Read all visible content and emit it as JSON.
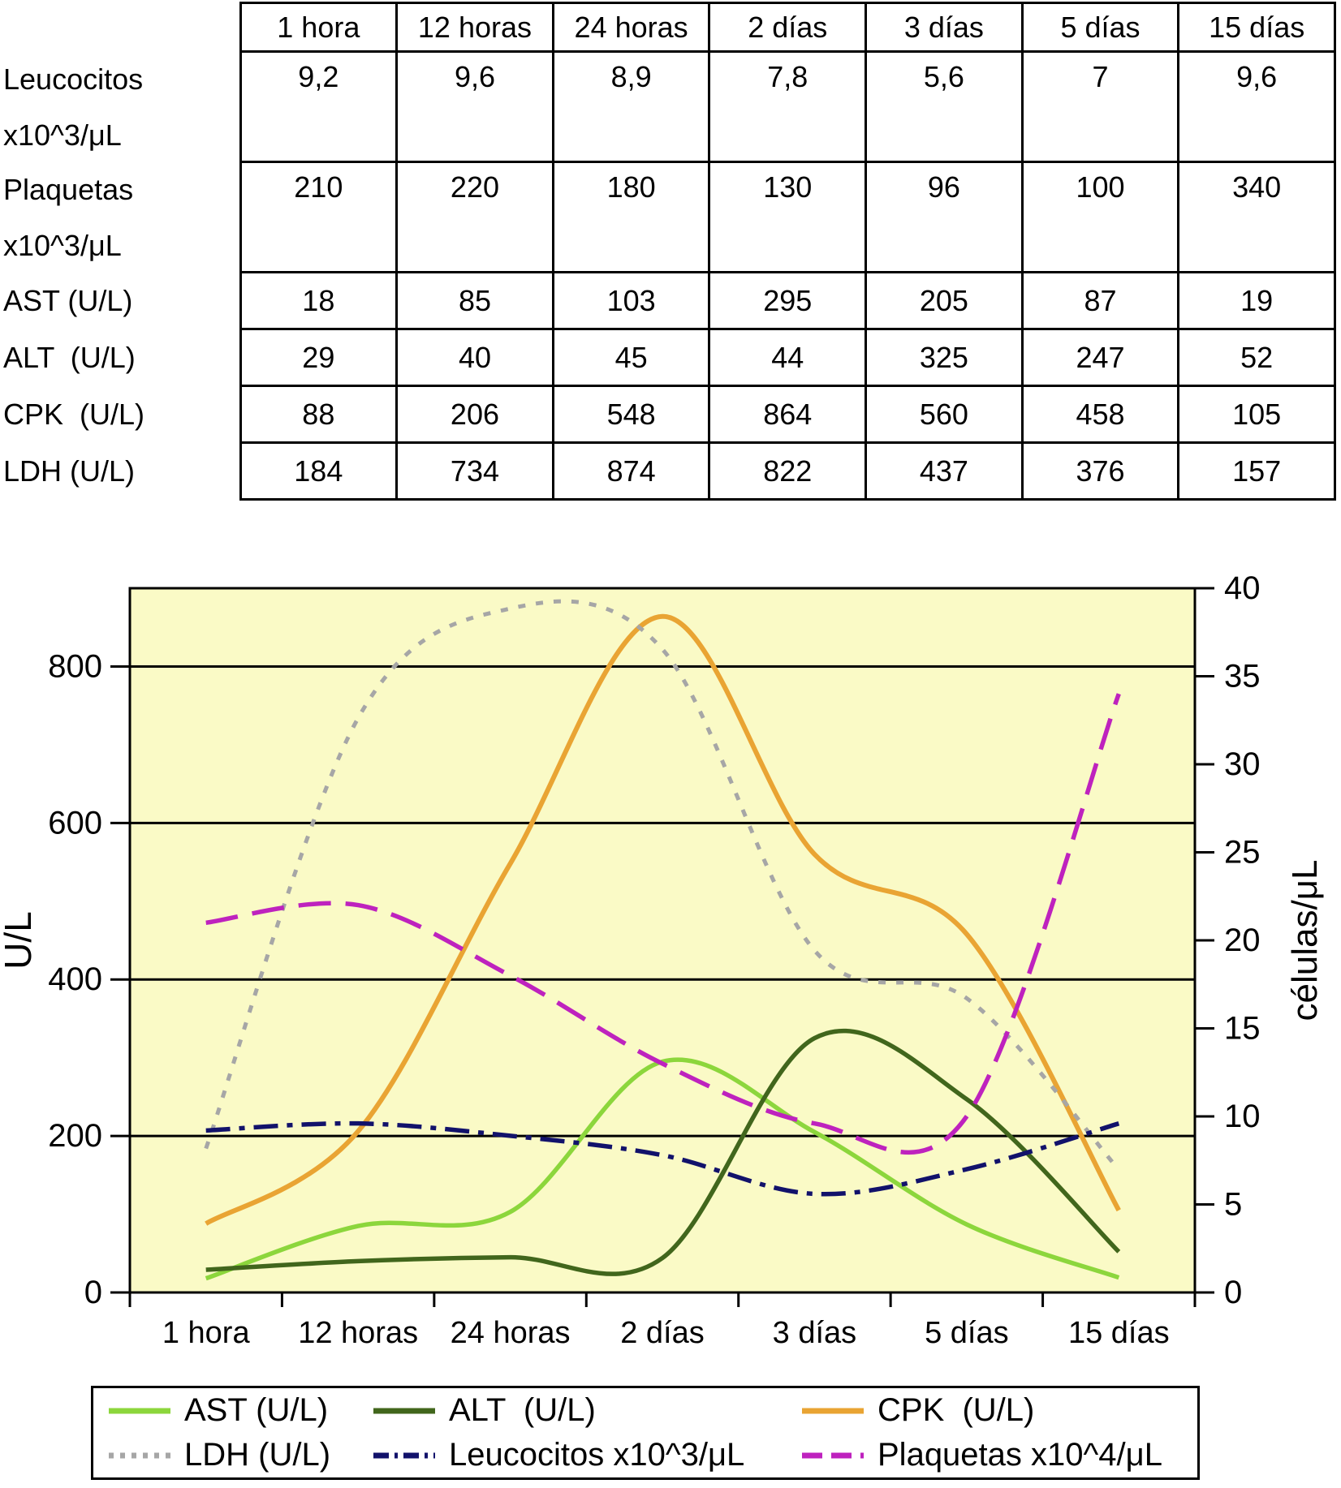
{
  "table": {
    "columns": [
      "1 hora",
      "12 horas",
      "24 horas",
      "2 días",
      "3 días",
      "5 días",
      "15 días"
    ],
    "rows": [
      {
        "key": "leucocitos",
        "label": "Leucocitos",
        "label2": "x10^3/μL",
        "tall": true,
        "values": [
          "9,2",
          "9,6",
          "8,9",
          "7,8",
          "5,6",
          "7",
          "9,6"
        ]
      },
      {
        "key": "plaquetas",
        "label": "Plaquetas",
        "label2": "x10^3/μL",
        "tall": true,
        "values": [
          "210",
          "220",
          "180",
          "130",
          "96",
          "100",
          "340"
        ]
      },
      {
        "key": "ast",
        "label": "AST (U/L)",
        "label2": "",
        "tall": false,
        "values": [
          "18",
          "85",
          "103",
          "295",
          "205",
          "87",
          "19"
        ]
      },
      {
        "key": "alt",
        "label": "ALT  (U/L)",
        "label2": "",
        "tall": false,
        "values": [
          "29",
          "40",
          "45",
          "44",
          "325",
          "247",
          "52"
        ]
      },
      {
        "key": "cpk",
        "label": "CPK  (U/L)",
        "label2": "",
        "tall": false,
        "values": [
          "88",
          "206",
          "548",
          "864",
          "560",
          "458",
          "105"
        ]
      },
      {
        "key": "ldh",
        "label": "LDH (U/L)",
        "label2": "",
        "tall": false,
        "values": [
          "184",
          "734",
          "874",
          "822",
          "437",
          "376",
          "157"
        ]
      }
    ]
  },
  "chart_data": {
    "type": "line",
    "smooth": true,
    "categories": [
      "1 hora",
      "12 horas",
      "24 horas",
      "2 días",
      "3 días",
      "5 días",
      "15 días"
    ],
    "series": [
      {
        "key": "ast",
        "name": "AST (U/L)",
        "axis": "left",
        "color": "#8CD63C",
        "dash": "",
        "width": 5.5,
        "values": [
          18,
          85,
          103,
          295,
          205,
          87,
          19
        ]
      },
      {
        "key": "alt",
        "name": "ALT  (U/L)",
        "axis": "left",
        "color": "#41661C",
        "dash": "",
        "width": 5.5,
        "values": [
          29,
          40,
          45,
          44,
          325,
          247,
          52
        ]
      },
      {
        "key": "cpk",
        "name": "CPK  (U/L)",
        "axis": "left",
        "color": "#E9A433",
        "dash": "",
        "width": 6,
        "values": [
          88,
          206,
          548,
          864,
          560,
          458,
          105
        ]
      },
      {
        "key": "ldh",
        "name": "LDH (U/L)",
        "axis": "left",
        "color": "#A6A6A6",
        "dash": "9 13",
        "width": 5,
        "values": [
          184,
          734,
          874,
          822,
          437,
          376,
          157
        ]
      },
      {
        "key": "leucocitos",
        "name": "Leucocitos x10^3/μL",
        "axis": "right",
        "color": "#12126B",
        "dash": "30 11 7 11",
        "width": 5.5,
        "values": [
          9.2,
          9.6,
          8.9,
          7.8,
          5.6,
          7,
          9.6
        ]
      },
      {
        "key": "plaquetas",
        "name": "Plaquetas x10^4/μL",
        "axis": "right",
        "color": "#BE22BE",
        "dash": "40 18",
        "width": 5.5,
        "values": [
          21,
          22,
          18,
          13,
          9.6,
          10,
          34
        ]
      }
    ],
    "left_axis": {
      "title": "U/L",
      "min": 0,
      "max": 900,
      "ticks": [
        0,
        200,
        400,
        600,
        800
      ]
    },
    "right_axis": {
      "title": "células/μL",
      "min": 0,
      "max": 40,
      "ticks": [
        0,
        5,
        10,
        15,
        20,
        25,
        30,
        35,
        40
      ]
    },
    "gridlines_at": [
      200,
      400,
      600,
      800
    ],
    "plot_bg": "#FAFAC6",
    "axis_color": "#000000",
    "legend_position": "bottom"
  },
  "legend": {
    "items": [
      {
        "key": "ast",
        "label": "AST (U/L)",
        "series": 0
      },
      {
        "key": "alt",
        "label": "ALT  (U/L)",
        "series": 1
      },
      {
        "key": "cpk",
        "label": "CPK  (U/L)",
        "series": 2
      },
      {
        "key": "ldh",
        "label": "LDH (U/L)",
        "series": 3
      },
      {
        "key": "leucocitos",
        "label": "Leucocitos x10^3/μL",
        "series": 4
      },
      {
        "key": "plaquetas",
        "label": "Plaquetas x10^4/μL",
        "series": 5
      }
    ]
  }
}
